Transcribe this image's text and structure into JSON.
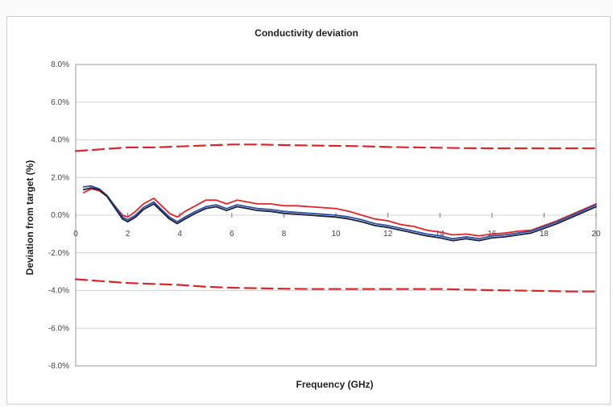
{
  "chart_data": {
    "type": "line",
    "title": "Conductivity deviation",
    "xlabel": "Frequency (GHz)",
    "ylabel": "Deviation from target (%)",
    "xlim": [
      0,
      20
    ],
    "ylim": [
      -8,
      8
    ],
    "x_ticks": [
      "0",
      "2",
      "4",
      "6",
      "8",
      "10",
      "12",
      "14",
      "16",
      "18",
      "20"
    ],
    "y_ticks": [
      "8.0%",
      "6.0%",
      "4.0%",
      "2.0%",
      "0.0%",
      "-2.0%",
      "-4.0%",
      "-6.0%",
      "-8.0%"
    ],
    "grid": true,
    "legend": "none",
    "series": [
      {
        "color": "#d9262a",
        "style": "dashed",
        "x": [
          0,
          1,
          2,
          3,
          4,
          5,
          6,
          7,
          8,
          9,
          10,
          11,
          12,
          13,
          14,
          15,
          16,
          17,
          18,
          19,
          20
        ],
        "y": [
          3.4,
          3.5,
          3.6,
          3.6,
          3.65,
          3.7,
          3.75,
          3.75,
          3.72,
          3.7,
          3.68,
          3.66,
          3.62,
          3.6,
          3.58,
          3.56,
          3.55,
          3.55,
          3.55,
          3.55,
          3.55
        ]
      },
      {
        "color": "#d9262a",
        "style": "dashed",
        "x": [
          0,
          1,
          2,
          3,
          4,
          5,
          6,
          7,
          8,
          9,
          10,
          11,
          12,
          13,
          14,
          15,
          16,
          17,
          18,
          19,
          20
        ],
        "y": [
          -3.4,
          -3.5,
          -3.6,
          -3.65,
          -3.7,
          -3.8,
          -3.85,
          -3.88,
          -3.9,
          -3.92,
          -3.92,
          -3.92,
          -3.92,
          -3.92,
          -3.92,
          -3.95,
          -3.98,
          -4.0,
          -4.02,
          -4.05,
          -4.05
        ]
      },
      {
        "color": "#e0252b",
        "style": "solid",
        "x": [
          0.3,
          0.6,
          0.9,
          1.2,
          1.5,
          1.8,
          2.0,
          2.3,
          2.6,
          3.0,
          3.3,
          3.6,
          3.9,
          4.2,
          4.6,
          5.0,
          5.4,
          5.8,
          6.2,
          6.6,
          7.0,
          7.5,
          8.0,
          8.5,
          9.0,
          9.5,
          10.0,
          10.5,
          11.0,
          11.5,
          12.0,
          12.5,
          13.0,
          13.5,
          14.0,
          14.5,
          15.0,
          15.5,
          16.0,
          16.5,
          17.0,
          17.5,
          18.0,
          18.5,
          19.0,
          19.5,
          20.0
        ],
        "y": [
          1.2,
          1.4,
          1.3,
          1.0,
          0.5,
          0.0,
          -0.1,
          0.2,
          0.6,
          0.9,
          0.5,
          0.1,
          -0.1,
          0.2,
          0.5,
          0.8,
          0.8,
          0.6,
          0.8,
          0.7,
          0.6,
          0.6,
          0.5,
          0.5,
          0.45,
          0.4,
          0.35,
          0.2,
          0.0,
          -0.2,
          -0.3,
          -0.5,
          -0.6,
          -0.8,
          -0.9,
          -1.05,
          -1.0,
          -1.1,
          -1.0,
          -0.95,
          -0.85,
          -0.8,
          -0.55,
          -0.3,
          0.0,
          0.3,
          0.6
        ]
      },
      {
        "color": "#2b4fa8",
        "style": "solid",
        "x": [
          0.3,
          0.6,
          0.9,
          1.2,
          1.5,
          1.8,
          2.0,
          2.3,
          2.6,
          3.0,
          3.3,
          3.6,
          3.9,
          4.2,
          4.6,
          5.0,
          5.4,
          5.8,
          6.2,
          6.6,
          7.0,
          7.5,
          8.0,
          8.5,
          9.0,
          9.5,
          10.0,
          10.5,
          11.0,
          11.5,
          12.0,
          12.5,
          13.0,
          13.5,
          14.0,
          14.5,
          15.0,
          15.5,
          16.0,
          16.5,
          17.0,
          17.5,
          18.0,
          18.5,
          19.0,
          19.5,
          20.0
        ],
        "y": [
          1.5,
          1.55,
          1.4,
          1.05,
          0.5,
          -0.1,
          -0.25,
          0.0,
          0.4,
          0.7,
          0.3,
          -0.1,
          -0.35,
          -0.1,
          0.2,
          0.45,
          0.55,
          0.35,
          0.55,
          0.45,
          0.35,
          0.3,
          0.2,
          0.15,
          0.1,
          0.05,
          0.0,
          -0.1,
          -0.25,
          -0.45,
          -0.55,
          -0.7,
          -0.85,
          -1.0,
          -1.1,
          -1.25,
          -1.15,
          -1.25,
          -1.1,
          -1.05,
          -0.95,
          -0.85,
          -0.6,
          -0.35,
          -0.05,
          0.25,
          0.55
        ]
      },
      {
        "color": "#1c2238",
        "style": "solid",
        "x": [
          0.3,
          0.6,
          0.9,
          1.2,
          1.5,
          1.8,
          2.0,
          2.3,
          2.6,
          3.0,
          3.3,
          3.6,
          3.9,
          4.2,
          4.6,
          5.0,
          5.4,
          5.8,
          6.2,
          6.6,
          7.0,
          7.5,
          8.0,
          8.5,
          9.0,
          9.5,
          10.0,
          10.5,
          11.0,
          11.5,
          12.0,
          12.5,
          13.0,
          13.5,
          14.0,
          14.5,
          15.0,
          15.5,
          16.0,
          16.5,
          17.0,
          17.5,
          18.0,
          18.5,
          19.0,
          19.5,
          20.0
        ],
        "y": [
          1.35,
          1.45,
          1.35,
          1.0,
          0.4,
          -0.2,
          -0.35,
          -0.1,
          0.3,
          0.6,
          0.2,
          -0.2,
          -0.45,
          -0.2,
          0.1,
          0.35,
          0.45,
          0.25,
          0.45,
          0.35,
          0.25,
          0.2,
          0.1,
          0.05,
          0.0,
          -0.05,
          -0.1,
          -0.2,
          -0.35,
          -0.55,
          -0.65,
          -0.8,
          -0.95,
          -1.1,
          -1.2,
          -1.35,
          -1.25,
          -1.35,
          -1.2,
          -1.15,
          -1.05,
          -0.95,
          -0.7,
          -0.45,
          -0.15,
          0.15,
          0.45
        ]
      }
    ]
  }
}
